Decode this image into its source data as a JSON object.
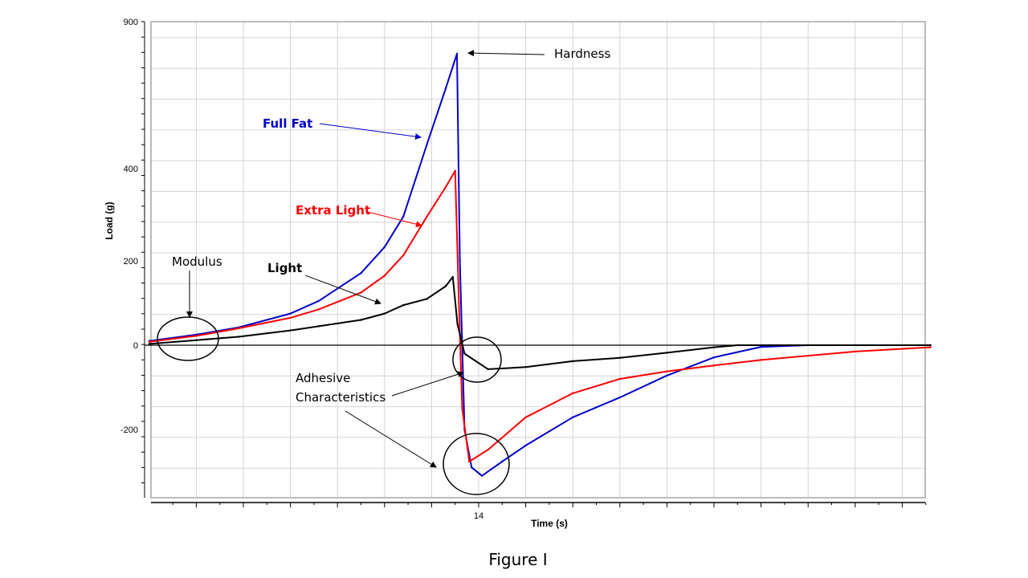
{
  "chart_data": {
    "type": "line",
    "title": "",
    "xlabel": "Time (s)",
    "ylabel": "Load (g)",
    "x_ticks": [
      14
    ],
    "y_ticks": [
      900,
      400,
      200,
      0,
      -200
    ],
    "xlim": [
      7,
      23.6
    ],
    "ylim": [
      -360,
      900
    ],
    "grid": true,
    "series": [
      {
        "name": "Full Fat",
        "color": "#0000cc",
        "x": [
          7,
          8,
          8.9,
          10,
          10.6,
          11.5,
          12,
          12.4,
          12.9,
          13.3,
          13.54,
          13.6,
          13.7,
          13.85,
          14.07,
          14.5,
          15,
          16,
          17,
          18,
          19,
          20,
          21,
          23.6
        ],
        "y": [
          10,
          25,
          42,
          75,
          105,
          171,
          230,
          296,
          482,
          673,
          791,
          200,
          -200,
          -290,
          -310,
          -276,
          -238,
          -171,
          -124,
          -72,
          -29,
          -4,
          0,
          0
        ]
      },
      {
        "name": "Extra Light",
        "color": "#ff0000",
        "x": [
          7,
          8,
          8.9,
          10,
          10.6,
          11.5,
          12,
          12.4,
          12.9,
          13.3,
          13.5,
          13.58,
          13.65,
          13.8,
          14.2,
          15,
          16,
          17,
          18,
          19,
          20,
          21,
          22,
          23.6
        ],
        "y": [
          8,
          22,
          40,
          65,
          85,
          125,
          165,
          212,
          296,
          360,
          395,
          100,
          -150,
          -276,
          -248,
          -171,
          -114,
          -80,
          -62,
          -48,
          -35,
          -25,
          -15,
          -5
        ]
      },
      {
        "name": "Light",
        "color": "#000000",
        "x": [
          7,
          8,
          8.9,
          10,
          10.6,
          11.5,
          12,
          12.4,
          12.9,
          13.3,
          13.45,
          13.55,
          13.7,
          14.2,
          15,
          16,
          17,
          18,
          19,
          19.5,
          23.6
        ],
        "y": [
          3,
          12,
          20,
          35,
          45,
          60,
          75,
          95,
          110,
          140,
          162,
          50,
          -20,
          -57,
          -52,
          -38,
          -30,
          -18,
          -5,
          0,
          0
        ]
      }
    ],
    "annotations": {
      "hardness": "Hardness",
      "full_fat": "Full Fat",
      "extra_light": "Extra Light",
      "light": "Light",
      "modulus": "Modulus",
      "adhesive_1": "Adhesive",
      "adhesive_2": "Characteristics"
    }
  },
  "caption": "Figure I"
}
